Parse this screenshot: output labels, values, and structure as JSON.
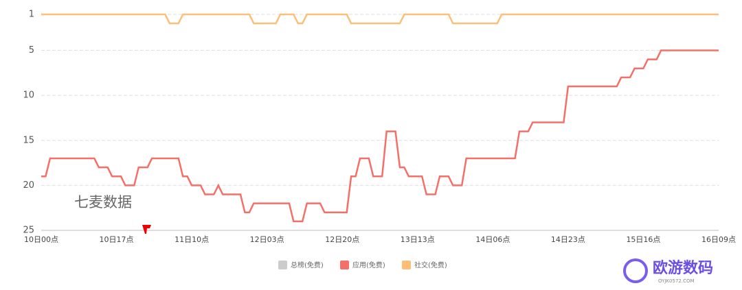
{
  "chart_data": {
    "type": "line",
    "x": [
      "10日00点",
      null,
      null,
      null,
      null,
      null,
      null,
      null,
      null,
      null,
      null,
      null,
      null,
      null,
      null,
      null,
      null,
      "10日17点",
      null,
      null,
      null,
      null,
      null,
      null,
      null,
      null,
      null,
      null,
      null,
      null,
      null,
      null,
      null,
      null,
      "11日10点",
      null,
      null,
      null,
      null,
      null,
      null,
      null,
      null,
      null,
      null,
      null,
      null,
      null,
      null,
      null,
      null,
      "12日03点",
      null,
      null,
      null,
      null,
      null,
      null,
      null,
      null,
      null,
      null,
      null,
      null,
      null,
      null,
      null,
      null,
      "12日20点",
      null,
      null,
      null,
      null,
      null,
      null,
      null,
      null,
      null,
      null,
      null,
      null,
      null,
      null,
      null,
      null,
      "13日13点",
      null,
      null,
      null,
      null,
      null,
      null,
      null,
      null,
      null,
      null,
      null,
      null,
      null,
      null,
      null,
      null,
      "14日06点",
      null,
      null,
      null,
      null,
      null,
      null,
      null,
      null,
      null,
      null,
      null,
      null,
      null,
      null,
      null,
      null,
      "14日23点",
      null,
      null,
      null,
      null,
      null,
      null,
      null,
      null,
      null,
      null,
      null,
      null,
      null,
      null,
      null,
      null,
      "15日16点",
      null,
      null,
      null,
      null,
      null,
      null,
      null,
      null,
      null,
      null,
      null,
      null,
      null,
      null,
      null,
      null,
      "16日09点"
    ],
    "series": [
      {
        "name": "总榜(免费)",
        "color": "#cccccc",
        "values": [
          null,
          null,
          null,
          null,
          null,
          null,
          null,
          null,
          null,
          null,
          null,
          null,
          null,
          null,
          null,
          null,
          null,
          null,
          null,
          null,
          null,
          null,
          null,
          null,
          null,
          null,
          null,
          null,
          null,
          null,
          null,
          null,
          null,
          null,
          null,
          null,
          null,
          null,
          null,
          null,
          null,
          null,
          null,
          null,
          null,
          null,
          null,
          null,
          null,
          null,
          null,
          null,
          null,
          null,
          null,
          null,
          null,
          null,
          null,
          null,
          null,
          null,
          null,
          null,
          null,
          null,
          null,
          null,
          null,
          null,
          null,
          null,
          null,
          null,
          null,
          null,
          null,
          null,
          null,
          null,
          null,
          null,
          null,
          null,
          null,
          null,
          null,
          null,
          null,
          null,
          null,
          null,
          null,
          null,
          null,
          null,
          null,
          null,
          null,
          null,
          null,
          null,
          null,
          null,
          null,
          null,
          null,
          null,
          null,
          null,
          null,
          null,
          null,
          null,
          null,
          null,
          null,
          null,
          null,
          null,
          null,
          null,
          null,
          null,
          null,
          null,
          null,
          null,
          null,
          null,
          null,
          null,
          null,
          null,
          null,
          null,
          null,
          null,
          null,
          null,
          null,
          null,
          null,
          null,
          null,
          null,
          null,
          null,
          null,
          null,
          null,
          null,
          null,
          null
        ]
      },
      {
        "name": "应用(免费)",
        "color": "#f56e67",
        "values": [
          19,
          19,
          17,
          17,
          17,
          17,
          17,
          17,
          17,
          17,
          17,
          17,
          17,
          18,
          18,
          18,
          19,
          19,
          19,
          20,
          20,
          20,
          18,
          18,
          18,
          17,
          17,
          17,
          17,
          17,
          17,
          17,
          19,
          19,
          20,
          20,
          20,
          21,
          21,
          21,
          20,
          21,
          21,
          21,
          21,
          21,
          23,
          23,
          22,
          22,
          22,
          22,
          22,
          22,
          22,
          22,
          22,
          24,
          24,
          24,
          22,
          22,
          22,
          22,
          23,
          23,
          23,
          23,
          23,
          23,
          19,
          19,
          17,
          17,
          17,
          19,
          19,
          19,
          14,
          14,
          14,
          18,
          18,
          19,
          19,
          19,
          19,
          21,
          21,
          21,
          19,
          19,
          19,
          20,
          20,
          20,
          17,
          17,
          17,
          17,
          17,
          17,
          17,
          17,
          17,
          17,
          17,
          17,
          14,
          14,
          14,
          13,
          13,
          13,
          13,
          13,
          13,
          13,
          13,
          9,
          9,
          9,
          9,
          9,
          9,
          9,
          9,
          9,
          9,
          9,
          9,
          8,
          8,
          8,
          7,
          7,
          7,
          6,
          6,
          6,
          5,
          5,
          5,
          5,
          5,
          5,
          5,
          5,
          5,
          5,
          5,
          5,
          5,
          5
        ]
      },
      {
        "name": "社交(免费)",
        "color": "#fbbf78",
        "values": [
          1,
          1,
          1,
          1,
          1,
          1,
          1,
          1,
          1,
          1,
          1,
          1,
          1,
          1,
          1,
          1,
          1,
          1,
          1,
          1,
          1,
          1,
          1,
          1,
          1,
          1,
          1,
          1,
          1,
          2,
          2,
          2,
          1,
          1,
          1,
          1,
          1,
          1,
          1,
          1,
          1,
          1,
          1,
          1,
          1,
          1,
          1,
          1,
          2,
          2,
          2,
          2,
          2,
          2,
          1,
          1,
          1,
          1,
          2,
          2,
          1,
          1,
          1,
          1,
          1,
          1,
          1,
          1,
          1,
          1,
          2,
          2,
          2,
          2,
          2,
          2,
          2,
          2,
          2,
          2,
          2,
          2,
          1,
          1,
          1,
          1,
          1,
          1,
          1,
          1,
          1,
          1,
          1,
          2,
          2,
          2,
          2,
          2,
          2,
          2,
          2,
          2,
          2,
          2,
          1,
          1,
          1,
          1,
          1,
          1,
          1,
          1,
          1,
          1,
          1,
          1,
          1,
          1,
          1,
          1,
          1,
          1,
          1,
          1,
          1,
          1,
          1,
          1,
          1,
          1,
          1,
          1,
          1,
          1,
          1,
          1,
          1,
          1,
          1,
          1,
          1,
          1,
          1,
          1,
          1,
          1,
          1,
          1,
          1,
          1,
          1,
          1,
          1,
          1
        ]
      }
    ],
    "ylim": [
      25,
      1
    ],
    "yticks": [
      1,
      5,
      10,
      15,
      20,
      25
    ],
    "grid": true,
    "watermark": "七麦数据"
  },
  "logo": {
    "title": "欧游数码",
    "subtitle": "OYJK0572.COM"
  }
}
